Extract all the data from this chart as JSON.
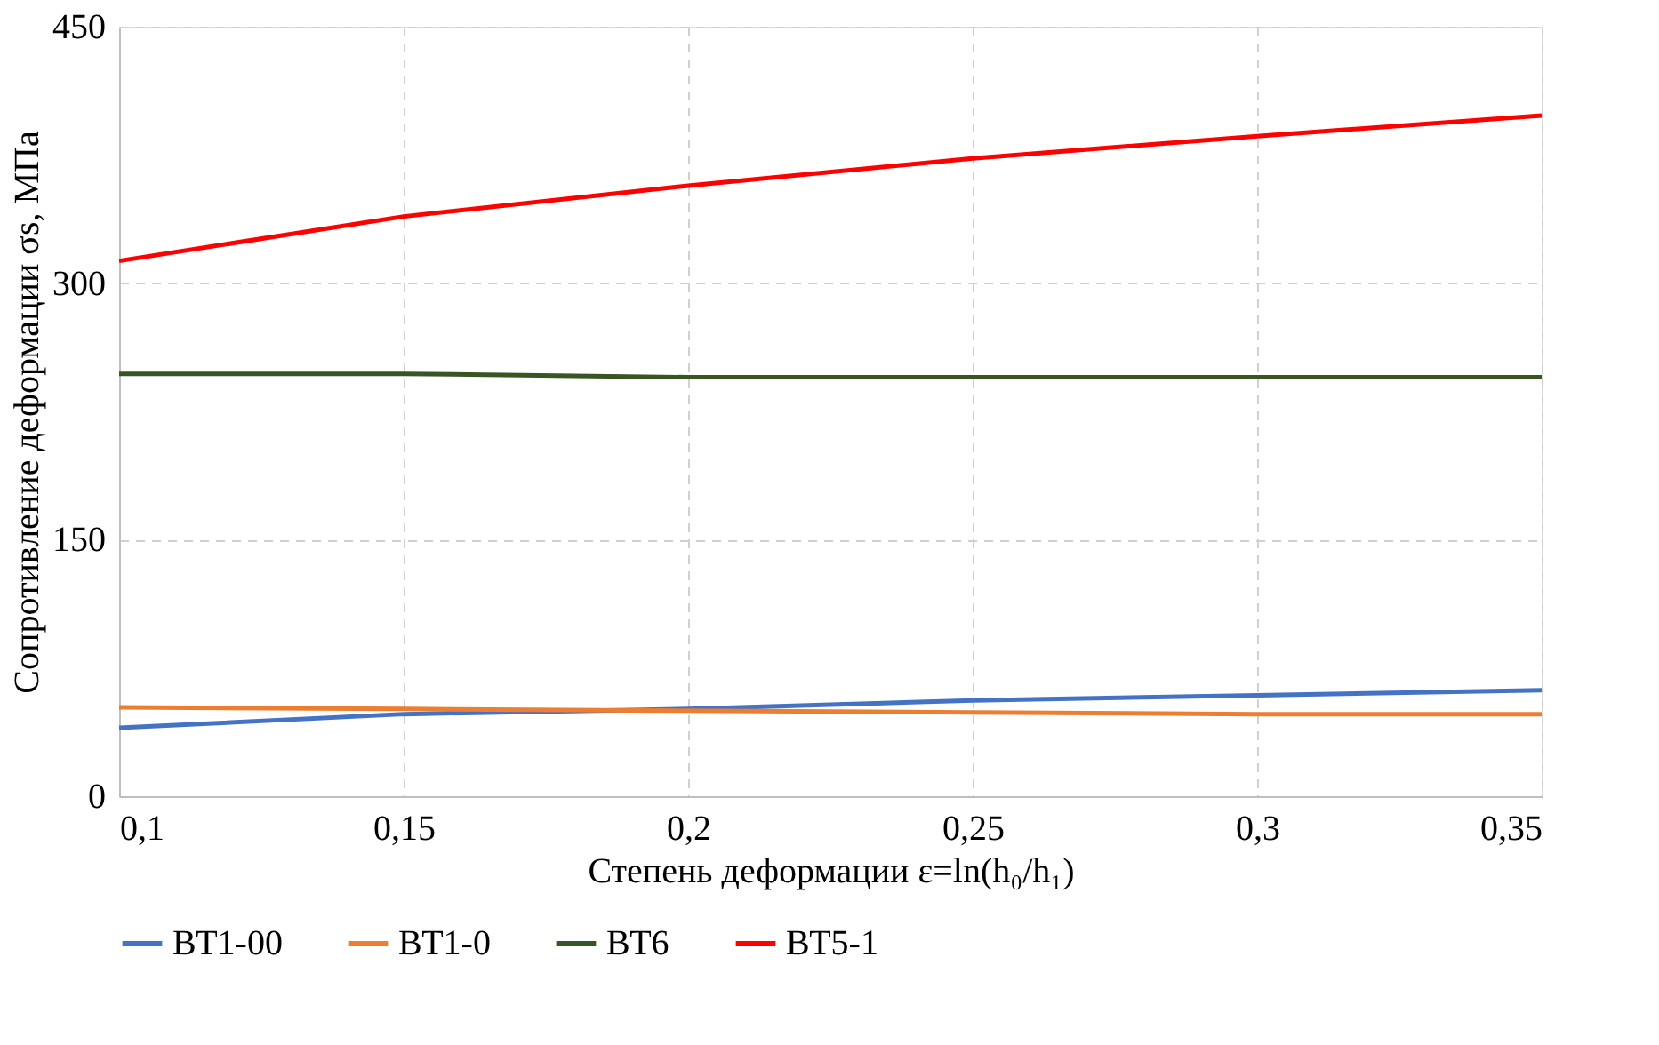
{
  "chart_data": {
    "type": "line",
    "xlabel": "Степень деформации ε=ln(h₀/h₁)",
    "ylabel": "Сопротивление деформации  σs,  МПа",
    "x": [
      0.1,
      0.15,
      0.2,
      0.25,
      0.3,
      0.35
    ],
    "xlim": [
      0.1,
      0.35
    ],
    "xticks": [
      {
        "value": 0.1,
        "label": "0,1"
      },
      {
        "value": 0.15,
        "label": "0,15"
      },
      {
        "value": 0.2,
        "label": "0,2"
      },
      {
        "value": 0.25,
        "label": "0,25"
      },
      {
        "value": 0.3,
        "label": "0,3"
      },
      {
        "value": 0.35,
        "label": "0,35"
      }
    ],
    "ylim": [
      0,
      450
    ],
    "yticks": [
      0,
      150,
      300,
      450
    ],
    "series": [
      {
        "name": "ВТ1-00",
        "color": "#4472c4",
        "values": [
          40,
          48,
          51,
          56,
          59,
          62
        ]
      },
      {
        "name": "ВТ1-0",
        "color": "#ed7d31",
        "values": [
          52,
          51,
          50,
          49,
          48,
          48
        ]
      },
      {
        "name": "ВТ6",
        "color": "#375623",
        "values": [
          247,
          247,
          245,
          245,
          245,
          245
        ]
      },
      {
        "name": "ВТ5-1",
        "color": "#ff0000",
        "values": [
          313,
          339,
          357,
          373,
          386,
          398
        ]
      }
    ],
    "grid": true,
    "legend": "bottom",
    "line_style": "solid"
  }
}
